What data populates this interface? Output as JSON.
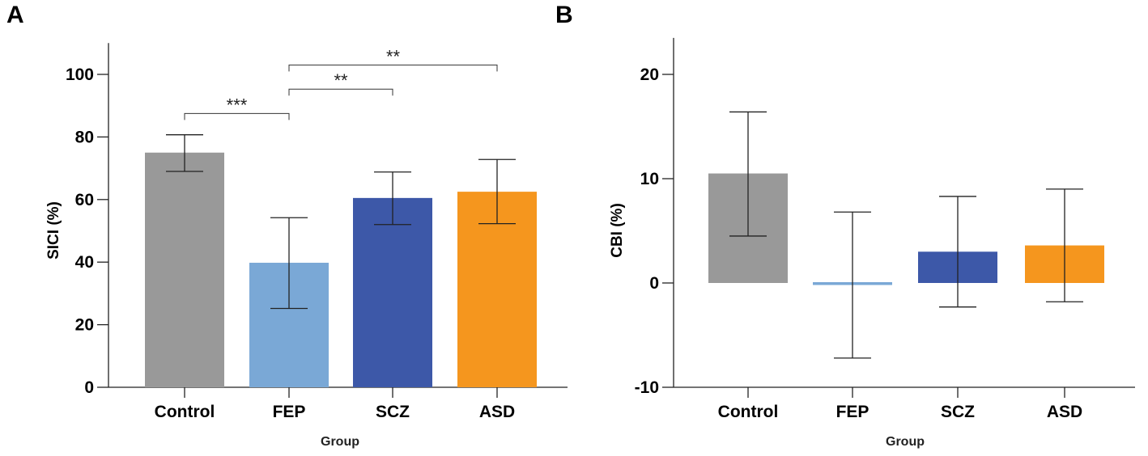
{
  "chart_data": [
    {
      "panel": "A",
      "type": "bar",
      "title": "",
      "xlabel": "Group",
      "ylabel": "SICI (%)",
      "ylim": [
        0,
        110
      ],
      "yticks": [
        0,
        20,
        40,
        60,
        80,
        100
      ],
      "categories": [
        "Control",
        "FEP",
        "SCZ",
        "ASD"
      ],
      "values": [
        75,
        39.8,
        60.5,
        62.5
      ],
      "error_low": [
        69,
        25.2,
        52,
        52.3
      ],
      "error_high": [
        80.7,
        54.2,
        68.8,
        72.8
      ],
      "colors": [
        "#999999",
        "#7aa8d6",
        "#3d58a8",
        "#f5961e"
      ],
      "significance": [
        {
          "from": 0,
          "to": 1,
          "label": "***",
          "y": 87.5
        },
        {
          "from": 1,
          "to": 2,
          "label": "**",
          "y": 95.3
        },
        {
          "from": 1,
          "to": 3,
          "label": "**",
          "y": 103
        }
      ]
    },
    {
      "panel": "B",
      "type": "bar",
      "title": "",
      "xlabel": "Group",
      "ylabel": "CBI (%)",
      "ylim": [
        -10,
        23.5
      ],
      "yticks": [
        -10,
        0,
        10,
        20
      ],
      "categories": [
        "Control",
        "FEP",
        "SCZ",
        "ASD"
      ],
      "values": [
        10.5,
        -0.2,
        3,
        3.6
      ],
      "error_low": [
        4.5,
        -7.2,
        -2.3,
        -1.8
      ],
      "error_high": [
        16.4,
        6.8,
        8.3,
        9
      ],
      "colors": [
        "#999999",
        "#7aa8d6",
        "#3d58a8",
        "#f5961e"
      ],
      "significance": []
    }
  ]
}
